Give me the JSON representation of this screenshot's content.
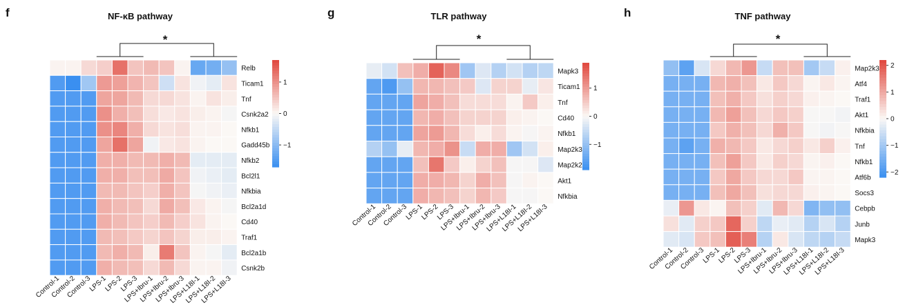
{
  "figure": {
    "background": "#ffffff",
    "colormap": {
      "low": "#3a8ff0",
      "mid": "#fbf8f5",
      "high": "#e0473d"
    }
  },
  "chart_data": [
    {
      "type": "heatmap",
      "panel_letter": "f",
      "title": "NF-κB pathway",
      "significance": "*",
      "columns": [
        "Control-1",
        "Control-2",
        "Control-3",
        "LPS-1",
        "LPS-2",
        "LPS-3",
        "LPS+Ibru-1",
        "LPS+Ibru-2",
        "LPS+Ibru-3",
        "LPS+L18I-1",
        "LPS+L18I-2",
        "LPS+L18I-3"
      ],
      "rows": [
        "Relb",
        "Ticam1",
        "Tnf",
        "Csnk2a2",
        "Nfkb1",
        "Gadd45b",
        "Nfkb2",
        "Bcl2l1",
        "Nfkbia",
        "Bcl2a1d",
        "Cd40",
        "Traf1",
        "Bcl2a1b",
        "Csnk2b"
      ],
      "values": [
        [
          0.05,
          0.05,
          0.3,
          0.4,
          1.3,
          0.5,
          0.6,
          0.5,
          0.05,
          -1.3,
          -1.2,
          -0.9
        ],
        [
          -1.5,
          -1.7,
          -0.8,
          0.9,
          0.85,
          0.65,
          0.5,
          -0.4,
          0.2,
          -0.1,
          -0.2,
          0.2
        ],
        [
          -1.5,
          -1.5,
          -1.5,
          0.8,
          0.8,
          0.6,
          0.3,
          0.3,
          0.2,
          0.05,
          0.2,
          0.1
        ],
        [
          -1.5,
          -1.5,
          -1.5,
          1.0,
          0.7,
          0.55,
          0.25,
          0.15,
          0.2,
          0.1,
          0.05,
          -0.05
        ],
        [
          -1.5,
          -1.5,
          -1.5,
          1.0,
          1.1,
          0.7,
          0.3,
          0.2,
          0.25,
          0.05,
          0.05,
          0.0
        ],
        [
          -1.5,
          -1.5,
          -1.5,
          0.8,
          1.3,
          0.8,
          -0.1,
          0.15,
          0.2,
          0.05,
          0.0,
          0.0
        ],
        [
          -1.5,
          -1.5,
          -1.5,
          0.7,
          0.7,
          0.6,
          0.6,
          0.7,
          0.6,
          -0.2,
          -0.2,
          -0.2
        ],
        [
          -1.5,
          -1.5,
          -1.5,
          0.7,
          0.7,
          0.55,
          0.55,
          0.75,
          0.5,
          -0.1,
          -0.15,
          -0.2
        ],
        [
          -1.5,
          -1.5,
          -1.5,
          0.6,
          0.6,
          0.5,
          0.4,
          0.7,
          0.5,
          -0.05,
          -0.1,
          -0.15
        ],
        [
          -1.5,
          -1.5,
          -1.5,
          0.7,
          0.6,
          0.55,
          0.3,
          0.75,
          0.55,
          0.15,
          0.05,
          -0.05
        ],
        [
          -1.5,
          -1.5,
          -1.5,
          0.7,
          0.6,
          0.5,
          0.4,
          0.6,
          0.4,
          0.2,
          0.05,
          0.0
        ],
        [
          -1.5,
          -1.5,
          -1.5,
          0.6,
          0.55,
          0.45,
          0.35,
          0.5,
          0.35,
          0.1,
          0.1,
          0.05
        ],
        [
          -1.5,
          -1.5,
          -1.5,
          0.6,
          0.7,
          0.6,
          0.1,
          1.2,
          0.5,
          0.05,
          -0.05,
          -0.2
        ],
        [
          -1.5,
          -1.5,
          -1.5,
          0.7,
          0.6,
          0.55,
          0.3,
          0.6,
          0.3,
          0.05,
          0.05,
          -0.1
        ]
      ],
      "colorbar": {
        "ticks": [
          1,
          0,
          -1
        ],
        "range": [
          -1.7,
          1.7
        ]
      }
    },
    {
      "type": "heatmap",
      "panel_letter": "g",
      "title": "TLR pathway",
      "significance": "*",
      "columns": [
        "Control-1",
        "Control-2",
        "Control-3",
        "LPS-1",
        "LPS-2",
        "LPS-3",
        "LPS+Ibru-1",
        "LPS+Ibru-2",
        "LPS+Ibru-3",
        "LPS+L18I-1",
        "LPS+L18I-2",
        "LPS+L18I-3"
      ],
      "rows": [
        "Mapk3",
        "Ticam1",
        "Tnf",
        "Cd40",
        "Nfkb1",
        "Map2k3",
        "Map2k2",
        "Akt1",
        "Nfkbia"
      ],
      "values": [
        [
          -0.2,
          -0.4,
          0.6,
          0.8,
          1.6,
          1.2,
          -0.9,
          -0.3,
          -0.7,
          -0.4,
          -0.7,
          -0.6
        ],
        [
          -1.5,
          -1.7,
          -1.0,
          0.7,
          0.7,
          0.6,
          0.5,
          -0.3,
          0.4,
          0.4,
          -0.2,
          0.2
        ],
        [
          -1.5,
          -1.5,
          -1.5,
          0.9,
          0.8,
          0.6,
          0.3,
          0.3,
          0.3,
          0.05,
          0.5,
          0.1
        ],
        [
          -1.5,
          -1.5,
          -1.5,
          0.7,
          0.8,
          0.6,
          0.4,
          0.4,
          0.4,
          0.1,
          0.05,
          0.0
        ],
        [
          -1.5,
          -1.5,
          -1.5,
          0.9,
          1.0,
          0.7,
          0.3,
          0.1,
          0.3,
          0.05,
          -0.05,
          0.05
        ],
        [
          -0.7,
          -1.0,
          -0.2,
          0.7,
          0.8,
          1.1,
          -0.5,
          0.8,
          0.8,
          -0.9,
          -0.4,
          0.1
        ],
        [
          -1.5,
          -1.5,
          -1.5,
          0.6,
          1.4,
          0.5,
          0.1,
          0.4,
          0.6,
          -0.05,
          -0.05,
          -0.3
        ],
        [
          -1.5,
          -1.5,
          -1.5,
          0.8,
          0.8,
          0.7,
          0.4,
          0.8,
          0.6,
          -0.05,
          0.05,
          0.0
        ],
        [
          -1.5,
          -1.5,
          -1.5,
          0.8,
          0.7,
          0.6,
          0.4,
          0.7,
          0.5,
          -0.05,
          -0.05,
          0.0
        ]
      ],
      "colorbar": {
        "ticks": [
          1,
          0,
          -1
        ],
        "range": [
          -1.9,
          1.9
        ]
      }
    },
    {
      "type": "heatmap",
      "panel_letter": "h",
      "title": "TNF pathway",
      "significance": "*",
      "columns": [
        "Control-1",
        "Control-2",
        "Control-3",
        "LPS-1",
        "LPS-2",
        "LPS-3",
        "LPS+Ibru-1",
        "LPS+Ibru-2",
        "LPS+Ibru-3",
        "LPS+L18I-1",
        "LPS+L18I-2",
        "LPS+L18I-3"
      ],
      "rows": [
        "Map2k3",
        "Atf4",
        "Traf1",
        "Akt1",
        "Nfkbia",
        "Tnf",
        "Nfkb1",
        "Atf6b",
        "Socs3",
        "Cebpb",
        "Junb",
        "Mapk3"
      ],
      "values": [
        [
          -1.2,
          -1.8,
          -0.4,
          0.4,
          0.8,
          1.2,
          -0.6,
          0.7,
          0.7,
          -1.0,
          -0.6,
          0.1
        ],
        [
          -1.5,
          -1.5,
          -1.5,
          0.8,
          0.9,
          0.7,
          0.2,
          0.6,
          0.4,
          0.05,
          0.2,
          0.05
        ],
        [
          -1.5,
          -1.5,
          -1.5,
          0.7,
          0.9,
          0.6,
          0.3,
          0.5,
          0.4,
          0.1,
          0.05,
          0.0
        ],
        [
          -1.5,
          -1.5,
          -1.5,
          0.8,
          1.1,
          0.7,
          0.4,
          0.6,
          0.5,
          -0.05,
          -0.05,
          -0.1
        ],
        [
          -1.5,
          -1.5,
          -1.5,
          0.6,
          0.9,
          0.7,
          0.4,
          0.9,
          0.6,
          -0.05,
          -0.1,
          -0.05
        ],
        [
          -1.5,
          -1.8,
          -1.5,
          0.9,
          0.8,
          0.6,
          0.2,
          0.4,
          0.5,
          0.2,
          0.5,
          0.1
        ],
        [
          -1.5,
          -1.5,
          -1.5,
          0.7,
          1.1,
          0.6,
          0.2,
          0.5,
          0.4,
          0.05,
          0.1,
          0.0
        ],
        [
          -1.5,
          -1.5,
          -1.5,
          0.6,
          1.0,
          0.6,
          0.4,
          0.4,
          0.6,
          0.05,
          0.05,
          0.0
        ],
        [
          -1.5,
          -1.5,
          -1.5,
          0.7,
          1.0,
          0.7,
          0.3,
          0.4,
          0.4,
          0.1,
          0.05,
          0.0
        ],
        [
          -0.2,
          1.2,
          0.2,
          0.05,
          0.7,
          0.5,
          -0.3,
          0.8,
          0.4,
          -1.4,
          -1.2,
          -1.2
        ],
        [
          0.3,
          -0.3,
          0.5,
          0.6,
          1.8,
          0.5,
          -0.7,
          -0.2,
          -0.3,
          -0.8,
          -0.4,
          -0.8
        ],
        [
          -0.3,
          -0.4,
          0.6,
          0.7,
          1.9,
          1.5,
          -0.8,
          0.2,
          -0.4,
          -0.7,
          -0.8,
          -0.6
        ]
      ],
      "colorbar": {
        "ticks": [
          2,
          1,
          0,
          -1,
          -2
        ],
        "range": [
          -2.2,
          2.2
        ]
      }
    }
  ]
}
